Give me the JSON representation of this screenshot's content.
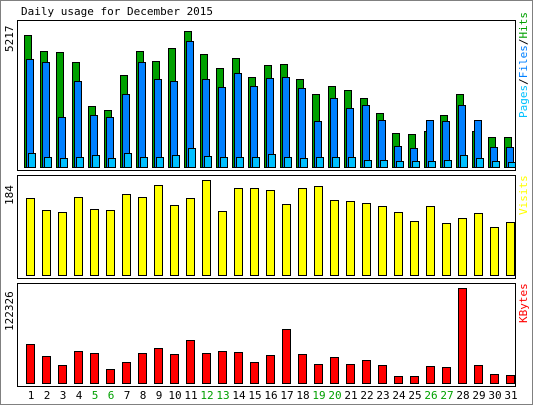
{
  "title": "Daily usage for December 2015",
  "colors": {
    "hits": "#00a000",
    "files": "#0080ff",
    "pages": "#00c0ff",
    "visits": "#ffff00",
    "kbytes": "#ff0000",
    "weekday_label": "#000000",
    "weekend_label": "#00a000",
    "background": "#ffffff",
    "panel_border": "#000000"
  },
  "legend": {
    "pages": "Pages",
    "sep1": "/",
    "files": "Files",
    "sep2": "/",
    "hits": "Hits",
    "visits": "Visits",
    "kbytes": "KBytes"
  },
  "chart_data": [
    {
      "type": "bar",
      "name": "hits-files-pages",
      "categories": [
        "1",
        "2",
        "3",
        "4",
        "5",
        "6",
        "7",
        "8",
        "9",
        "10",
        "11",
        "12",
        "13",
        "14",
        "15",
        "16",
        "17",
        "18",
        "19",
        "20",
        "21",
        "22",
        "23",
        "24",
        "25",
        "26",
        "27",
        "28",
        "29",
        "30",
        "31"
      ],
      "weekend_days": [
        "5",
        "6",
        "12",
        "13",
        "19",
        "20",
        "26",
        "27"
      ],
      "ymax_label": "5217",
      "ylim": [
        0,
        5217
      ],
      "series": [
        {
          "name": "Hits",
          "values": [
            4800,
            4200,
            4150,
            3800,
            2200,
            2050,
            3350,
            4200,
            3850,
            4300,
            4935,
            4100,
            3600,
            3940,
            3260,
            3700,
            3720,
            3200,
            2650,
            2950,
            2800,
            2500,
            1950,
            1230,
            1200,
            1290,
            1900,
            2650,
            1300,
            1100,
            1090
          ]
        },
        {
          "name": "Files",
          "values": [
            3900,
            3800,
            1800,
            3100,
            1900,
            1800,
            2650,
            3800,
            3200,
            3100,
            4550,
            3200,
            2900,
            3400,
            2950,
            3240,
            3250,
            2860,
            1650,
            2500,
            2150,
            2250,
            1700,
            760,
            690,
            1720,
            1650,
            2250,
            1720,
            710,
            730
          ]
        },
        {
          "name": "Pages",
          "values": [
            490,
            360,
            340,
            370,
            440,
            320,
            500,
            380,
            360,
            420,
            700,
            400,
            360,
            380,
            350,
            480,
            350,
            330,
            380,
            380,
            350,
            250,
            270,
            200,
            210,
            230,
            260,
            420,
            320,
            200,
            180
          ]
        }
      ]
    },
    {
      "type": "bar",
      "name": "visits",
      "categories": [
        "1",
        "2",
        "3",
        "4",
        "5",
        "6",
        "7",
        "8",
        "9",
        "10",
        "11",
        "12",
        "13",
        "14",
        "15",
        "16",
        "17",
        "18",
        "19",
        "20",
        "21",
        "22",
        "23",
        "24",
        "25",
        "26",
        "27",
        "28",
        "29",
        "30",
        "31"
      ],
      "ymax_label": "184",
      "ylim": [
        0,
        184
      ],
      "series": [
        {
          "name": "Visits",
          "values": [
            150,
            126,
            122,
            151,
            127,
            126,
            156,
            152,
            174,
            135,
            150,
            184,
            124,
            168,
            168,
            165,
            138,
            169,
            173,
            145,
            144,
            139,
            133,
            122,
            104,
            134,
            101,
            110,
            120,
            92,
            102
          ]
        }
      ]
    },
    {
      "type": "bar",
      "name": "kbytes",
      "categories": [
        "1",
        "2",
        "3",
        "4",
        "5",
        "6",
        "7",
        "8",
        "9",
        "10",
        "11",
        "12",
        "13",
        "14",
        "15",
        "16",
        "17",
        "18",
        "19",
        "20",
        "21",
        "22",
        "23",
        "24",
        "25",
        "26",
        "27",
        "28",
        "29",
        "30",
        "31"
      ],
      "ymax_label": "122326",
      "ylim": [
        0,
        122326
      ],
      "series": [
        {
          "name": "KBytes",
          "values": [
            50000,
            35000,
            23000,
            41000,
            38000,
            18000,
            27500,
            39000,
            45000,
            37500,
            55000,
            39000,
            41000,
            40000,
            27500,
            35500,
            70000,
            37500,
            24000,
            34000,
            24000,
            30000,
            23000,
            9000,
            8500,
            22000,
            21000,
            122326,
            23500,
            12000,
            10500
          ]
        }
      ]
    }
  ]
}
